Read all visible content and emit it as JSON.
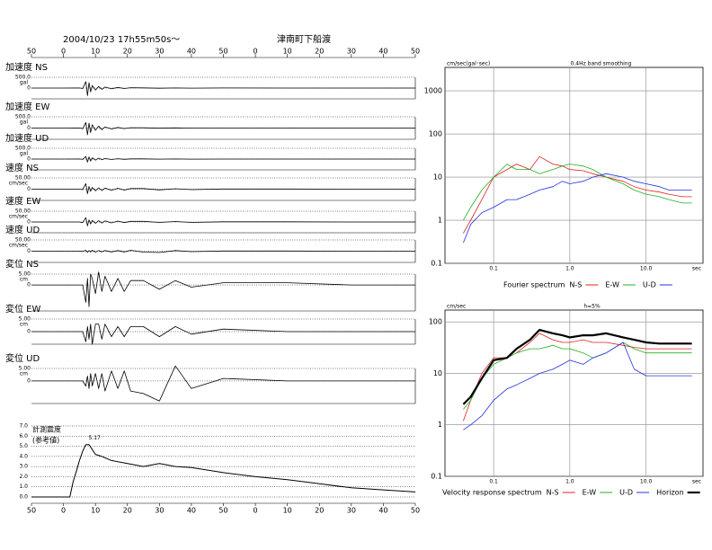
{
  "header": {
    "date": "2004/10/23 17h55m50s〜",
    "site": "津南町下船渡"
  },
  "chart_data": [
    {
      "type": "line",
      "label": "加速度 NS",
      "unit": "gal",
      "xlim": [
        0,
        120
      ],
      "ylim": [
        -500,
        500
      ],
      "yticks": [
        {
          "value": 500,
          "label": "500.0"
        },
        0
      ],
      "grid": true,
      "color": "#000000",
      "xticks": [
        {
          "value": 0,
          "label": "50"
        },
        {
          "value": 10,
          "label": "0"
        },
        {
          "value": 20,
          "label": "10"
        },
        {
          "value": 30,
          "label": "20"
        },
        {
          "value": 40,
          "label": "30"
        },
        {
          "value": 50,
          "label": "40"
        },
        {
          "value": 60,
          "label": "50"
        },
        {
          "value": 70,
          "label": "0"
        },
        {
          "value": 80,
          "label": "10"
        },
        {
          "value": 90,
          "label": "20"
        },
        {
          "value": 100,
          "label": "30"
        },
        {
          "value": 110,
          "label": "40"
        },
        {
          "value": 120,
          "label": "50"
        }
      ],
      "x": [
        0,
        10,
        15,
        16,
        17,
        17.5,
        18,
        18.5,
        19,
        20,
        21,
        22,
        23,
        25,
        27,
        29,
        31,
        35,
        40,
        45,
        50,
        60,
        80,
        100,
        120
      ],
      "values": [
        0,
        0,
        3,
        -20,
        300,
        -350,
        250,
        -180,
        120,
        -90,
        70,
        -60,
        45,
        -35,
        30,
        -20,
        15,
        10,
        -8,
        6,
        -4,
        3,
        2,
        1,
        0
      ]
    },
    {
      "type": "line",
      "label": "加速度 EW",
      "unit": "gal",
      "xlim": [
        0,
        120
      ],
      "ylim": [
        -500,
        500
      ],
      "yticks": [
        {
          "value": 500,
          "label": "500.0"
        },
        0
      ],
      "grid": true,
      "color": "#000000",
      "x": [
        0,
        10,
        15,
        16,
        17,
        17.5,
        18,
        18.5,
        19,
        20,
        21,
        22,
        23,
        25,
        27,
        29,
        31,
        35,
        40,
        45,
        50,
        60,
        80,
        100,
        120
      ],
      "values": [
        0,
        0,
        4,
        -30,
        250,
        -300,
        220,
        -200,
        150,
        -100,
        90,
        -70,
        50,
        -40,
        30,
        -25,
        18,
        12,
        -9,
        6,
        -5,
        3,
        2,
        1,
        0
      ]
    },
    {
      "type": "line",
      "label": "加速度 UD",
      "unit": "gal",
      "xlim": [
        0,
        120
      ],
      "ylim": [
        -500,
        500
      ],
      "yticks": [
        {
          "value": 500,
          "label": "500.0"
        },
        0
      ],
      "grid": true,
      "color": "#000000",
      "x": [
        0,
        10,
        15,
        16,
        17,
        17.5,
        18,
        18.5,
        19,
        20,
        21,
        22,
        23,
        25,
        27,
        29,
        31,
        35,
        40,
        45,
        50,
        60,
        80,
        100,
        120
      ],
      "values": [
        0,
        0,
        5,
        -15,
        120,
        -140,
        100,
        -90,
        60,
        -50,
        40,
        -30,
        25,
        -20,
        15,
        -12,
        10,
        8,
        -6,
        4,
        -3,
        2,
        1,
        1,
        0
      ]
    },
    {
      "type": "line",
      "label": "速度 NS",
      "unit": "cm/sec",
      "xlim": [
        0,
        120
      ],
      "ylim": [
        -50,
        50
      ],
      "yticks": [
        {
          "value": 50,
          "label": "50.00"
        },
        0
      ],
      "grid": true,
      "color": "#000000",
      "x": [
        0,
        10,
        15,
        16,
        17,
        17.5,
        18,
        18.5,
        19,
        20,
        21,
        22,
        23,
        25,
        27,
        29,
        31,
        35,
        40,
        45,
        50,
        60,
        80,
        100,
        120
      ],
      "values": [
        0,
        0,
        0,
        -2,
        25,
        -20,
        12,
        -10,
        8,
        -7,
        6,
        -6,
        5,
        -5,
        4,
        -4,
        3,
        3,
        -3,
        2,
        -2,
        1,
        1,
        0,
        0
      ]
    },
    {
      "type": "line",
      "label": "速度 EW",
      "unit": "cm/sec",
      "xlim": [
        0,
        120
      ],
      "ylim": [
        -50,
        50
      ],
      "yticks": [
        {
          "value": 50,
          "label": "50.00"
        },
        0
      ],
      "grid": true,
      "color": "#000000",
      "x": [
        0,
        10,
        15,
        16,
        17,
        17.5,
        18,
        18.5,
        19,
        20,
        21,
        22,
        23,
        25,
        27,
        29,
        31,
        35,
        40,
        45,
        50,
        60,
        80,
        100,
        120
      ],
      "values": [
        0,
        0,
        0,
        -3,
        20,
        -18,
        10,
        -9,
        7,
        -6,
        6,
        -5,
        5,
        -4,
        4,
        -3,
        3,
        3,
        -2,
        2,
        -2,
        1,
        1,
        0,
        0
      ]
    },
    {
      "type": "line",
      "label": "速度 UD",
      "unit": "cm/sec",
      "xlim": [
        0,
        120
      ],
      "ylim": [
        -50,
        50
      ],
      "yticks": [
        {
          "value": 50,
          "label": "50.00"
        },
        0
      ],
      "grid": true,
      "color": "#000000",
      "x": [
        0,
        10,
        15,
        16,
        17,
        17.5,
        18,
        18.5,
        19,
        20,
        21,
        22,
        23,
        25,
        27,
        29,
        31,
        35,
        40,
        45,
        50,
        60,
        80,
        100,
        120
      ],
      "values": [
        0,
        0,
        0,
        -1,
        4,
        -5,
        3,
        -3,
        4,
        -4,
        3,
        -3,
        3,
        -3,
        3,
        -3,
        4,
        -4,
        -6,
        3,
        -2,
        1,
        1,
        0,
        0
      ]
    },
    {
      "type": "line",
      "label": "変位 NS",
      "unit": "cm",
      "xlim": [
        0,
        120
      ],
      "ylim": [
        -12,
        5
      ],
      "yticks": [
        {
          "value": 5,
          "label": "5.00"
        },
        0
      ],
      "grid": true,
      "color": "#000000",
      "x": [
        0,
        10,
        15,
        16,
        17,
        17.5,
        18,
        18.5,
        19,
        20,
        21,
        22,
        23,
        25,
        27,
        29,
        31,
        35,
        40,
        45,
        50,
        60,
        80,
        100,
        120
      ],
      "values": [
        0,
        0,
        0,
        0,
        -8,
        3,
        -10,
        5,
        3,
        -4,
        6,
        -3,
        4,
        -3,
        3,
        -3,
        2,
        2,
        -2,
        2,
        -1,
        1,
        1,
        0,
        0
      ]
    },
    {
      "type": "line",
      "label": "変位 EW",
      "unit": "cm",
      "xlim": [
        0,
        120
      ],
      "ylim": [
        -5,
        5
      ],
      "yticks": [
        {
          "value": 5,
          "label": "5.00"
        },
        0
      ],
      "grid": true,
      "color": "#000000",
      "x": [
        0,
        10,
        15,
        16,
        17,
        17.5,
        18,
        18.5,
        19,
        20,
        21,
        22,
        23,
        25,
        27,
        29,
        31,
        35,
        40,
        45,
        50,
        60,
        80,
        100,
        120
      ],
      "values": [
        0,
        0,
        0,
        0,
        -4,
        2,
        -3,
        3,
        -5,
        3,
        3,
        -3,
        3,
        -2,
        2,
        -2,
        2,
        2,
        -2,
        2,
        -1,
        1,
        0,
        0,
        0
      ]
    },
    {
      "type": "line",
      "label": "変位 UD",
      "unit": "cm",
      "xlim": [
        0,
        120
      ],
      "ylim": [
        -9,
        5
      ],
      "yticks": [
        {
          "value": 5,
          "label": "5.00"
        },
        0
      ],
      "grid": true,
      "color": "#000000",
      "x": [
        0,
        10,
        15,
        16,
        17,
        17.5,
        18,
        18.5,
        19,
        20,
        21,
        22,
        23,
        25,
        27,
        29,
        31,
        35,
        40,
        45,
        50,
        60,
        80,
        100,
        120
      ],
      "values": [
        0,
        0,
        0,
        0,
        -2,
        2,
        -3,
        3,
        -2,
        3,
        -3,
        3,
        -4,
        4,
        -3,
        4,
        -4,
        -5,
        -8,
        6,
        -3,
        1,
        0,
        0,
        0
      ]
    },
    {
      "type": "line",
      "label": "計測震度",
      "sublabel": "(参考値)",
      "annotation": "5.17",
      "xlim": [
        0,
        120
      ],
      "ylim": [
        0,
        7
      ],
      "grid": true,
      "color": "#000000",
      "yticks": [
        {
          "value": 0,
          "label": "0.0"
        },
        {
          "value": 1,
          "label": "1.0"
        },
        {
          "value": 2,
          "label": "2.0"
        },
        {
          "value": 3,
          "label": "3.0"
        },
        {
          "value": 4,
          "label": "4.0"
        },
        {
          "value": 5,
          "label": "5.0"
        },
        {
          "value": 6,
          "label": "6.0"
        },
        {
          "value": 7,
          "label": "7.0"
        }
      ],
      "xticks": [
        {
          "value": 0,
          "label": "50"
        },
        {
          "value": 10,
          "label": "0"
        },
        {
          "value": 20,
          "label": "10"
        },
        {
          "value": 30,
          "label": "20"
        },
        {
          "value": 40,
          "label": "30"
        },
        {
          "value": 50,
          "label": "40"
        },
        {
          "value": 60,
          "label": "50"
        },
        {
          "value": 70,
          "label": "0"
        },
        {
          "value": 80,
          "label": "10"
        },
        {
          "value": 90,
          "label": "20"
        },
        {
          "value": 100,
          "label": "30"
        },
        {
          "value": 110,
          "label": "40"
        },
        {
          "value": 120,
          "label": "50"
        }
      ],
      "x": [
        0,
        12,
        13,
        14,
        15,
        16,
        17,
        18,
        20,
        22,
        25,
        30,
        35,
        40,
        45,
        50,
        60,
        70,
        80,
        90,
        100,
        110,
        120
      ],
      "values": [
        0,
        0,
        1.5,
        2.5,
        3.6,
        4.5,
        5.17,
        5.17,
        4.2,
        4.0,
        3.6,
        3.3,
        3.0,
        3.3,
        3.0,
        2.9,
        2.4,
        2.0,
        1.7,
        1.3,
        0.9,
        0.7,
        0.5
      ]
    },
    {
      "type": "line",
      "title": "0.4Hz band smoothing",
      "y_label": "cm/sec(gal･sec)",
      "x_label": "sec",
      "legend_title": "Fourier spectrum",
      "log_x": true,
      "log_y": true,
      "grid": true,
      "xlim": [
        0.023,
        56
      ],
      "ylim": [
        0.1,
        3500
      ],
      "xticks": [
        {
          "value": 0.1,
          "label": "0.1"
        },
        {
          "value": 1,
          "label": "1.0"
        },
        {
          "value": 10,
          "label": "10.0"
        }
      ],
      "yticks": [
        0.1,
        1,
        10,
        100,
        1000
      ],
      "x": [
        0.04,
        0.05,
        0.07,
        0.1,
        0.15,
        0.2,
        0.3,
        0.4,
        0.6,
        0.8,
        1,
        1.5,
        2,
        3,
        5,
        7,
        10,
        15,
        20,
        30,
        40
      ],
      "series": [
        {
          "name": "N-S",
          "color": "#e02020",
          "values": [
            0.5,
            1,
            3,
            10,
            15,
            20,
            15,
            30,
            20,
            18,
            15,
            14,
            12,
            10,
            8,
            6,
            5,
            4.5,
            4,
            3.5,
            3.5
          ]
        },
        {
          "name": "E-W",
          "color": "#20b020",
          "values": [
            1,
            2,
            5,
            10,
            20,
            15,
            15,
            12,
            15,
            18,
            20,
            18,
            15,
            10,
            7,
            5,
            4,
            3.5,
            3,
            2.5,
            2.5
          ]
        },
        {
          "name": "U-D",
          "color": "#2030e0",
          "values": [
            0.3,
            0.8,
            1.5,
            2,
            3,
            3,
            4,
            5,
            6,
            8,
            7,
            8,
            10,
            12,
            10,
            8,
            7,
            6,
            5,
            5,
            5
          ]
        }
      ]
    },
    {
      "type": "line",
      "subtitle": "h=5%",
      "y_label": "cm/sec",
      "x_label": "sec",
      "legend_title": "Velocity response spectrum",
      "log_x": true,
      "log_y": true,
      "grid": true,
      "xlim": [
        0.023,
        56
      ],
      "ylim": [
        0.1,
        170
      ],
      "xticks": [
        {
          "value": 0.1,
          "label": "0.1"
        },
        {
          "value": 1,
          "label": "1.0"
        },
        {
          "value": 10,
          "label": "10.0"
        }
      ],
      "yticks": [
        0.1,
        1,
        10,
        100
      ],
      "x": [
        0.04,
        0.05,
        0.07,
        0.1,
        0.15,
        0.2,
        0.3,
        0.4,
        0.6,
        0.8,
        1,
        1.5,
        2,
        3,
        5,
        7,
        10,
        15,
        20,
        30,
        40
      ],
      "series": [
        {
          "name": "N-S",
          "color": "#e02020",
          "values": [
            1.2,
            3,
            10,
            20,
            20,
            25,
            40,
            60,
            45,
            40,
            40,
            45,
            40,
            40,
            35,
            32,
            30,
            30,
            30,
            30,
            30
          ]
        },
        {
          "name": "E-W",
          "color": "#20b020",
          "values": [
            2,
            3,
            8,
            15,
            20,
            25,
            30,
            30,
            35,
            30,
            30,
            25,
            20,
            25,
            40,
            30,
            25,
            25,
            25,
            25,
            25
          ]
        },
        {
          "name": "U-D",
          "color": "#2030e0",
          "values": [
            0.8,
            1,
            1.5,
            3,
            5,
            6,
            8,
            10,
            12,
            15,
            18,
            15,
            20,
            25,
            40,
            12,
            9,
            9,
            9,
            9,
            9
          ]
        },
        {
          "name": "Horizon",
          "color": "#000000",
          "values": [
            2.5,
            3.5,
            8,
            18,
            20,
            30,
            45,
            70,
            60,
            55,
            50,
            55,
            55,
            60,
            50,
            45,
            40,
            38,
            38,
            38,
            38
          ]
        }
      ]
    }
  ]
}
